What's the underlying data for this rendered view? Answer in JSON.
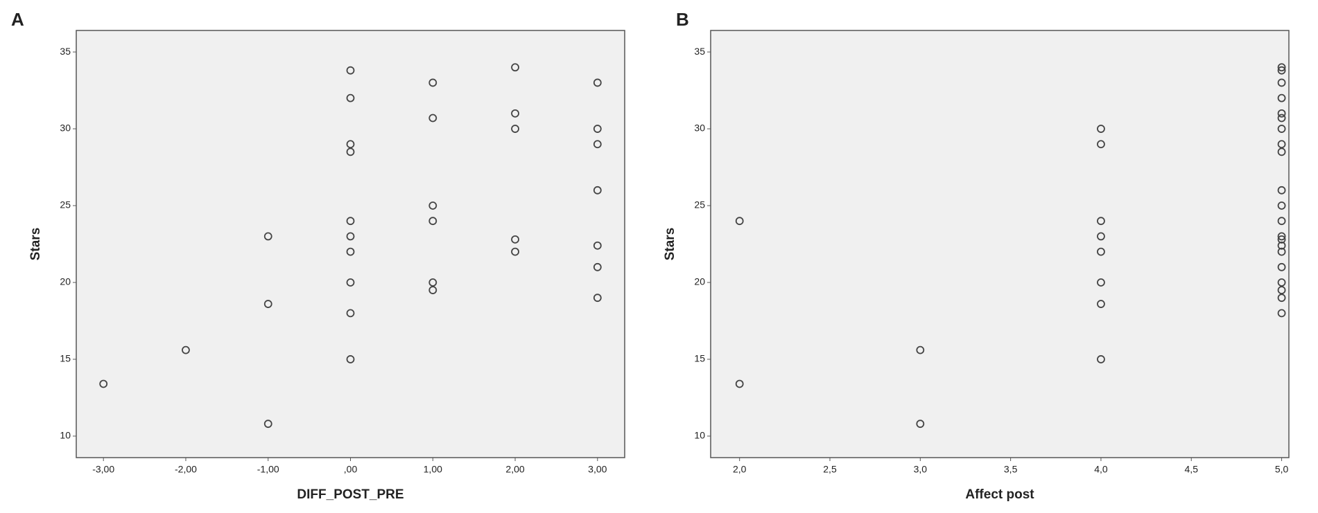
{
  "chart_data": [
    {
      "type": "scatter",
      "panel_label": "A",
      "x_label": "DIFF_POST_PRE",
      "y_label": "Stars",
      "x": [
        -3,
        -2,
        -1,
        -1,
        -1,
        0,
        0,
        0,
        0,
        0,
        0,
        0,
        0,
        0,
        0,
        1,
        1,
        1,
        1,
        1,
        1,
        2,
        2,
        2,
        2,
        2,
        3,
        3,
        3,
        3,
        3,
        3,
        3
      ],
      "values": [
        13.4,
        15.6,
        23,
        18.6,
        10.8,
        33.8,
        32,
        29,
        28.5,
        24,
        23,
        22,
        20,
        18,
        15,
        33,
        30.7,
        25,
        24,
        20,
        19.5,
        34,
        31,
        30,
        22.8,
        22,
        33,
        30,
        29,
        26,
        22.4,
        21,
        19
      ],
      "xlim": [
        -3.33,
        3.33
      ],
      "ylim": [
        8.6,
        36.4
      ],
      "xticks": [
        {
          "value": -3,
          "label": "-3,00"
        },
        {
          "value": -2,
          "label": "-2,00"
        },
        {
          "value": -1,
          "label": "-1,00"
        },
        {
          "value": 0,
          "label": ",00"
        },
        {
          "value": 1,
          "label": "1,00"
        },
        {
          "value": 2,
          "label": "2,00"
        },
        {
          "value": 3,
          "label": "3,00"
        }
      ],
      "yticks": [
        10,
        15,
        20,
        25,
        30,
        35
      ],
      "color": "#444444"
    },
    {
      "type": "scatter",
      "panel_label": "B",
      "x_label": "Affect post",
      "y_label": "Stars",
      "x": [
        2,
        2,
        3,
        3,
        4,
        4,
        4,
        4,
        4,
        4,
        4,
        4,
        5,
        5,
        5,
        5,
        5,
        5,
        5,
        5,
        5,
        5,
        5,
        5,
        5,
        5,
        5,
        5,
        5,
        5,
        5,
        5,
        5
      ],
      "values": [
        24,
        13.4,
        15.6,
        10.8,
        30,
        29,
        24,
        23,
        22,
        20,
        18.6,
        15,
        34,
        33.8,
        33,
        32,
        31,
        30.7,
        30,
        29,
        28.5,
        26,
        25,
        24,
        23,
        22.8,
        22.4,
        22,
        21,
        20,
        19.5,
        19,
        18
      ],
      "xlim": [
        1.84,
        5.04
      ],
      "ylim": [
        8.6,
        36.4
      ],
      "xticks": [
        {
          "value": 2,
          "label": "2,0"
        },
        {
          "value": 2.5,
          "label": "2,5"
        },
        {
          "value": 3,
          "label": "3,0"
        },
        {
          "value": 3.5,
          "label": "3,5"
        },
        {
          "value": 4,
          "label": "4,0"
        },
        {
          "value": 4.5,
          "label": "4,5"
        },
        {
          "value": 5,
          "label": "5,0"
        }
      ],
      "yticks": [
        10,
        15,
        20,
        25,
        30,
        35
      ],
      "color": "#444444"
    }
  ]
}
